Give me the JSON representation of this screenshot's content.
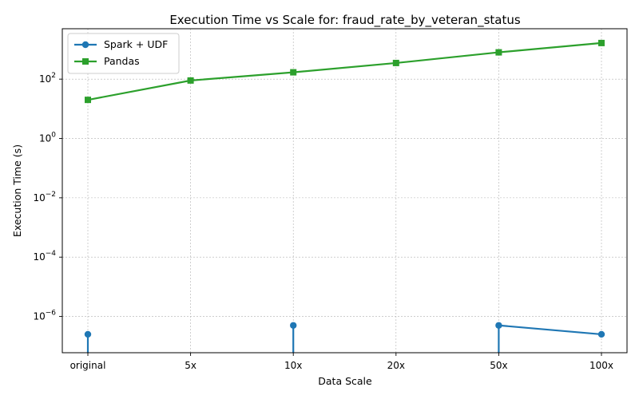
{
  "chart_data": {
    "type": "line",
    "title": "Execution Time vs Scale for: fraud_rate_by_veteran_status",
    "xlabel": "Data Scale",
    "ylabel": "Execution Time (s)",
    "y_scale": "log",
    "ylim": [
      6e-08,
      5000
    ],
    "y_ticks": [
      {
        "value": 100,
        "base": "10",
        "exp": "2"
      },
      {
        "value": 1,
        "base": "10",
        "exp": "0"
      },
      {
        "value": 0.01,
        "base": "10",
        "exp": "−2"
      },
      {
        "value": 0.0001,
        "base": "10",
        "exp": "−4"
      },
      {
        "value": 1e-06,
        "base": "10",
        "exp": "−6"
      }
    ],
    "categories": [
      "original",
      "5x",
      "10x",
      "20x",
      "50x",
      "100x"
    ],
    "grid": true,
    "legend_position": "top-left",
    "series": [
      {
        "name": "Spark + UDF",
        "color": "#1f77b4",
        "marker": "circle",
        "values": [
          2.5e-07,
          0,
          5e-07,
          0,
          5e-07,
          2.5e-07
        ]
      },
      {
        "name": "Pandas",
        "color": "#2ca02c",
        "marker": "square",
        "values": [
          20,
          90,
          170,
          350,
          800,
          1650
        ]
      }
    ]
  }
}
